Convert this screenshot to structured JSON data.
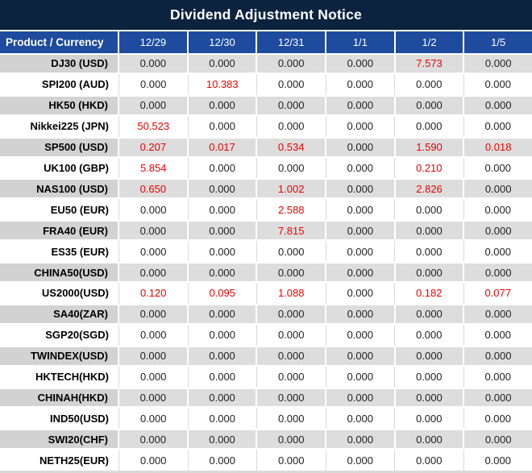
{
  "title": "Dividend Adjustment Notice",
  "colors": {
    "title_bar_bg": "#0C2340",
    "header_row_bg": "#1E4B9E",
    "header_text": "#FFFFFF",
    "row_stripe_bg": "#DDDDDD",
    "product_stripe_bg": "#D2D2D2",
    "row_white_bg": "#FFFFFF",
    "value_text": "#1F1F1F",
    "highlight_red": "#F20000"
  },
  "table": {
    "label_header": "Product / Currency",
    "date_headers": [
      "12/29",
      "12/30",
      "12/31",
      "1/1",
      "1/2",
      "1/5"
    ],
    "rows": [
      {
        "product": "DJ30 (USD)",
        "values": [
          "0.000",
          "0.000",
          "0.000",
          "0.000",
          "7.573",
          "0.000"
        ]
      },
      {
        "product": "SPI200 (AUD)",
        "values": [
          "0.000",
          "10.383",
          "0.000",
          "0.000",
          "0.000",
          "0.000"
        ]
      },
      {
        "product": "HK50 (HKD)",
        "values": [
          "0.000",
          "0.000",
          "0.000",
          "0.000",
          "0.000",
          "0.000"
        ]
      },
      {
        "product": "Nikkei225 (JPN)",
        "values": [
          "50.523",
          "0.000",
          "0.000",
          "0.000",
          "0.000",
          "0.000"
        ]
      },
      {
        "product": "SP500 (USD)",
        "values": [
          "0.207",
          "0.017",
          "0.534",
          "0.000",
          "1.590",
          "0.018"
        ]
      },
      {
        "product": "UK100 (GBP)",
        "values": [
          "5.854",
          "0.000",
          "0.000",
          "0.000",
          "0.210",
          "0.000"
        ]
      },
      {
        "product": "NAS100 (USD)",
        "values": [
          "0.650",
          "0.000",
          "1.002",
          "0.000",
          "2.826",
          "0.000"
        ]
      },
      {
        "product": "EU50 (EUR)",
        "values": [
          "0.000",
          "0.000",
          "2.588",
          "0.000",
          "0.000",
          "0.000"
        ]
      },
      {
        "product": "FRA40 (EUR)",
        "values": [
          "0.000",
          "0.000",
          "7.815",
          "0.000",
          "0.000",
          "0.000"
        ]
      },
      {
        "product": "ES35 (EUR)",
        "values": [
          "0.000",
          "0.000",
          "0.000",
          "0.000",
          "0.000",
          "0.000"
        ]
      },
      {
        "product": "CHINA50(USD)",
        "values": [
          "0.000",
          "0.000",
          "0.000",
          "0.000",
          "0.000",
          "0.000"
        ]
      },
      {
        "product": "US2000(USD)",
        "values": [
          "0.120",
          "0.095",
          "1.088",
          "0.000",
          "0.182",
          "0.077"
        ]
      },
      {
        "product": "SA40(ZAR)",
        "values": [
          "0.000",
          "0.000",
          "0.000",
          "0.000",
          "0.000",
          "0.000"
        ]
      },
      {
        "product": "SGP20(SGD)",
        "values": [
          "0.000",
          "0.000",
          "0.000",
          "0.000",
          "0.000",
          "0.000"
        ]
      },
      {
        "product": "TWINDEX(USD)",
        "values": [
          "0.000",
          "0.000",
          "0.000",
          "0.000",
          "0.000",
          "0.000"
        ]
      },
      {
        "product": "HKTECH(HKD)",
        "values": [
          "0.000",
          "0.000",
          "0.000",
          "0.000",
          "0.000",
          "0.000"
        ]
      },
      {
        "product": "CHINAH(HKD)",
        "values": [
          "0.000",
          "0.000",
          "0.000",
          "0.000",
          "0.000",
          "0.000"
        ]
      },
      {
        "product": "IND50(USD)",
        "values": [
          "0.000",
          "0.000",
          "0.000",
          "0.000",
          "0.000",
          "0.000"
        ]
      },
      {
        "product": "SWI20(CHF)",
        "values": [
          "0.000",
          "0.000",
          "0.000",
          "0.000",
          "0.000",
          "0.000"
        ]
      },
      {
        "product": "NETH25(EUR)",
        "values": [
          "0.000",
          "0.000",
          "0.000",
          "0.000",
          "0.000",
          "0.000"
        ]
      }
    ]
  }
}
